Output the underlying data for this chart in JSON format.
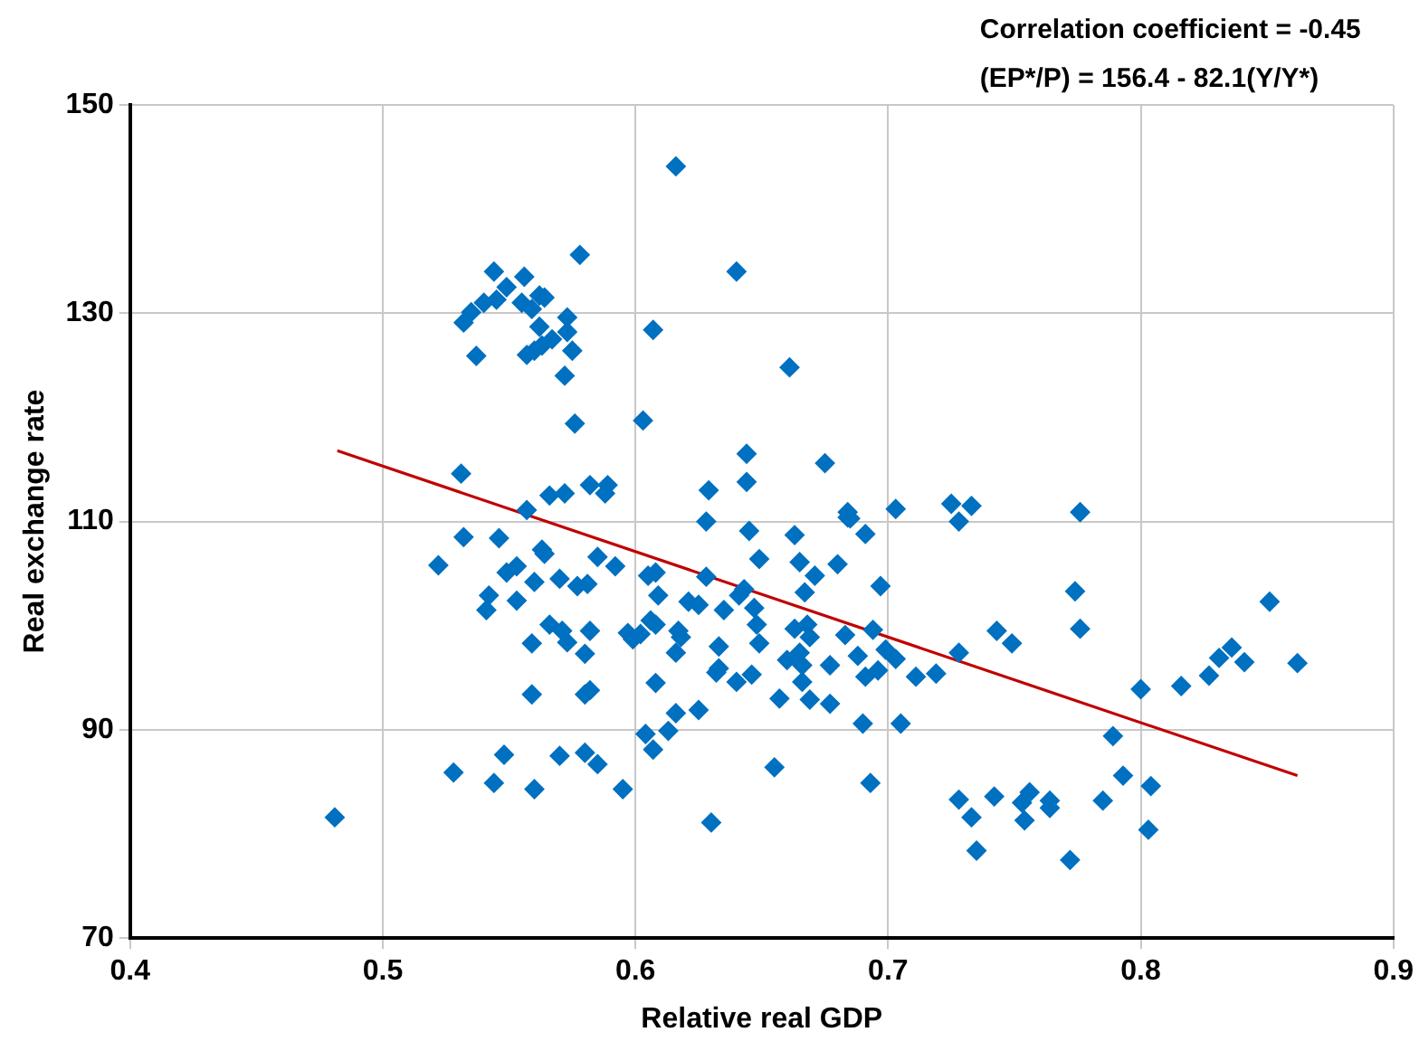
{
  "chart_data": {
    "type": "scatter",
    "xlabel": "Relative real GDP",
    "ylabel": "Real exchange rate",
    "annotations": [
      "Correlation coefficient = -0.45",
      "(EP*/P) = 156.4 - 82.1(Y/Y*)"
    ],
    "xlim": [
      0.4,
      0.9
    ],
    "xticks": [
      0.4,
      0.5,
      0.6,
      0.7,
      0.8,
      0.9
    ],
    "ylim": [
      70,
      150
    ],
    "yticks": [
      70,
      90,
      110,
      130,
      150
    ],
    "grid": true,
    "legend": false,
    "series": [
      {
        "color": "#0070c0",
        "marker": "diamond",
        "x": [
          0.481,
          0.578,
          0.544,
          0.556,
          0.549,
          0.545,
          0.54,
          0.555,
          0.562,
          0.564,
          0.559,
          0.535,
          0.532,
          0.562,
          0.573,
          0.573,
          0.607,
          0.567,
          0.563,
          0.56,
          0.557,
          0.575,
          0.537,
          0.572,
          0.576,
          0.603,
          0.531,
          0.582,
          0.589,
          0.588,
          0.566,
          0.572,
          0.557,
          0.616,
          0.64,
          0.661,
          0.644,
          0.675,
          0.629,
          0.644,
          0.684,
          0.703,
          0.725,
          0.733,
          0.532,
          0.546,
          0.563,
          0.564,
          0.522,
          0.553,
          0.549,
          0.585,
          0.592,
          0.56,
          0.57,
          0.577,
          0.581,
          0.605,
          0.608,
          0.542,
          0.541,
          0.553,
          0.609,
          0.566,
          0.571,
          0.573,
          0.582,
          0.559,
          0.58,
          0.597,
          0.599,
          0.602,
          0.606,
          0.608,
          0.559,
          0.58,
          0.582,
          0.608,
          0.604,
          0.613,
          0.607,
          0.528,
          0.548,
          0.544,
          0.56,
          0.57,
          0.58,
          0.585,
          0.595,
          0.628,
          0.645,
          0.663,
          0.684,
          0.685,
          0.691,
          0.728,
          0.649,
          0.665,
          0.68,
          0.671,
          0.628,
          0.621,
          0.625,
          0.635,
          0.641,
          0.643,
          0.647,
          0.667,
          0.697,
          0.617,
          0.618,
          0.633,
          0.648,
          0.649,
          0.663,
          0.668,
          0.669,
          0.683,
          0.694,
          0.616,
          0.632,
          0.633,
          0.64,
          0.646,
          0.66,
          0.665,
          0.666,
          0.666,
          0.677,
          0.688,
          0.691,
          0.696,
          0.699,
          0.703,
          0.711,
          0.719,
          0.728,
          0.743,
          0.749,
          0.657,
          0.669,
          0.677,
          0.625,
          0.616,
          0.69,
          0.705,
          0.655,
          0.693,
          0.63,
          0.728,
          0.742,
          0.733,
          0.735,
          0.753,
          0.776,
          0.774,
          0.776,
          0.8,
          0.816,
          0.827,
          0.831,
          0.836,
          0.841,
          0.851,
          0.862,
          0.789,
          0.793,
          0.804,
          0.803,
          0.785,
          0.756,
          0.764,
          0.764,
          0.754,
          0.772
        ],
        "values": [
          81.6,
          135.6,
          134.0,
          133.5,
          132.5,
          131.3,
          131.0,
          131.0,
          131.7,
          131.5,
          130.4,
          130.1,
          129.1,
          128.7,
          129.6,
          128.2,
          128.4,
          127.5,
          126.9,
          126.4,
          126.0,
          126.4,
          125.9,
          124.0,
          119.4,
          119.7,
          114.6,
          113.5,
          113.5,
          112.7,
          112.5,
          112.7,
          111.1,
          144.1,
          134.0,
          124.8,
          116.5,
          115.6,
          113.0,
          113.8,
          110.9,
          111.2,
          111.7,
          111.5,
          108.5,
          108.4,
          107.3,
          106.9,
          105.8,
          105.7,
          105.1,
          106.6,
          105.7,
          104.2,
          104.5,
          103.8,
          104.0,
          104.8,
          105.1,
          102.9,
          101.5,
          102.4,
          102.9,
          100.1,
          99.5,
          98.4,
          99.5,
          98.3,
          97.3,
          99.3,
          98.7,
          99.2,
          100.5,
          100.1,
          93.4,
          93.4,
          93.8,
          94.5,
          89.6,
          89.9,
          88.1,
          85.9,
          87.6,
          84.9,
          84.3,
          87.5,
          87.8,
          86.7,
          84.3,
          110.0,
          109.1,
          108.7,
          110.4,
          110.3,
          108.8,
          110.0,
          106.4,
          106.1,
          105.9,
          104.8,
          104.7,
          102.3,
          102.0,
          101.5,
          102.9,
          103.5,
          101.7,
          103.2,
          103.8,
          99.5,
          98.9,
          98.0,
          100.1,
          98.3,
          99.7,
          100.1,
          98.9,
          99.1,
          99.6,
          97.4,
          95.5,
          95.9,
          94.6,
          95.3,
          96.7,
          97.4,
          96.2,
          94.6,
          96.2,
          97.1,
          95.1,
          95.7,
          97.7,
          96.8,
          95.1,
          95.4,
          97.4,
          99.5,
          98.3,
          93.0,
          92.9,
          92.5,
          91.9,
          91.6,
          90.6,
          90.6,
          86.4,
          84.9,
          81.1,
          83.3,
          83.6,
          81.6,
          78.4,
          83.0,
          110.9,
          103.3,
          99.7,
          93.9,
          94.2,
          95.2,
          96.9,
          97.9,
          96.5,
          102.3,
          96.4,
          89.4,
          85.6,
          84.6,
          80.4,
          83.2,
          84.0,
          83.2,
          82.5,
          81.3,
          77.5
        ]
      },
      {
        "type": "line",
        "marker": "none",
        "color": "#c00000",
        "x": [
          0.482,
          0.862
        ],
        "values": [
          116.8,
          85.6
        ]
      }
    ]
  }
}
